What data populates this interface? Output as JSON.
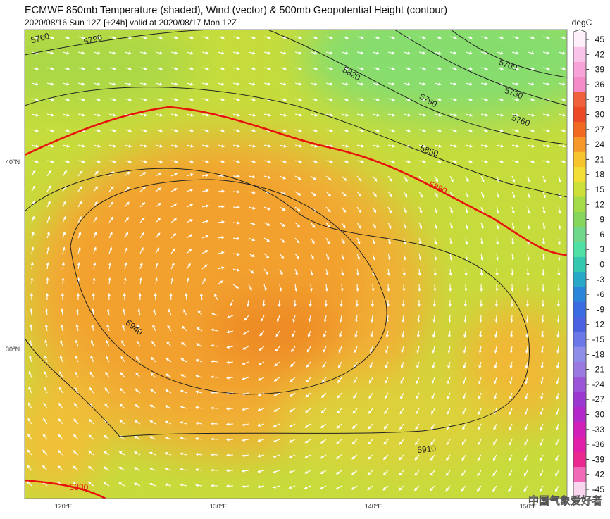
{
  "header": {
    "title": "ECMWF 850mb Temperature (shaded), Wind (vector) & 500mb Geopotential Height (contour)",
    "subtitle": "2020/08/16 Sun 12Z [+24h] valid at 2020/08/17 Mon 12Z"
  },
  "map": {
    "lat_labels": [
      "40°N",
      "30°N"
    ],
    "lon_labels": [
      "120°E",
      "130°E",
      "140°E",
      "150°E"
    ],
    "contour_labels": [
      "5760",
      "5790",
      "5820",
      "5700",
      "5730",
      "5790",
      "5760",
      "5850",
      "5880",
      "5940",
      "5910",
      "5880"
    ]
  },
  "colorbar": {
    "unit": "degC",
    "levels": [
      45,
      42,
      39,
      36,
      33,
      30,
      27,
      24,
      21,
      18,
      15,
      12,
      9,
      6,
      3,
      0,
      -3,
      -6,
      -9,
      -12,
      -15,
      -18,
      -21,
      -24,
      -27,
      -30,
      -33,
      -36,
      -39,
      -42,
      -45
    ],
    "colors": [
      "#fdf0fa",
      "#f9c4ea",
      "#f7a3d8",
      "#f58ac9",
      "#f0603a",
      "#ec4a26",
      "#f26a22",
      "#f7992a",
      "#f8c42e",
      "#f2de34",
      "#cde03a",
      "#a6db48",
      "#85d65a",
      "#6fd88a",
      "#4fe0a6",
      "#35c8b0",
      "#28a8c8",
      "#2a86d8",
      "#3a6ae0",
      "#4b62e0",
      "#6a78e8",
      "#8e8ee8",
      "#9a7ae0",
      "#9a55d8",
      "#9a38d0",
      "#b228c8",
      "#d020b8",
      "#e020a8",
      "#ea2890",
      "#f06ab8",
      "#fad6ee"
    ]
  },
  "watermark": "中国气象爱好者"
}
